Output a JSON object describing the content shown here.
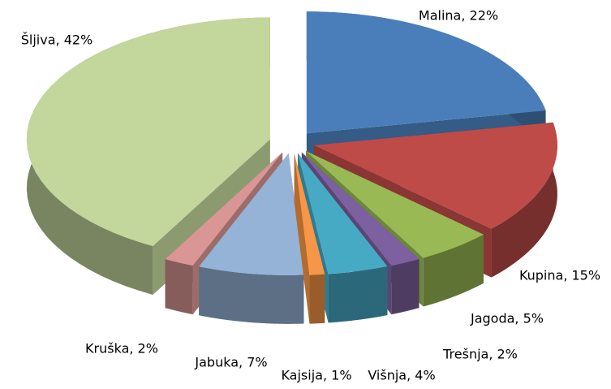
{
  "chart_data": {
    "type": "pie3d",
    "values": [
      22,
      15,
      5,
      2,
      4,
      1,
      7,
      2,
      42
    ],
    "value_labels": [
      "Malina, 22%",
      "Kupina, 15%",
      "Jagoda, 5%",
      "Trešnja, 2%",
      "Višnja, 4%",
      "Kajsija, 1%",
      "Jabuka, 7%",
      "Kruška, 2%",
      "Šljiva, 42%"
    ],
    "colors": [
      "#4a7ebb",
      "#be4b48",
      "#98b954",
      "#7d60a0",
      "#46aac5",
      "#f79646",
      "#95b3d7",
      "#d99694",
      "#c3d69b"
    ]
  }
}
